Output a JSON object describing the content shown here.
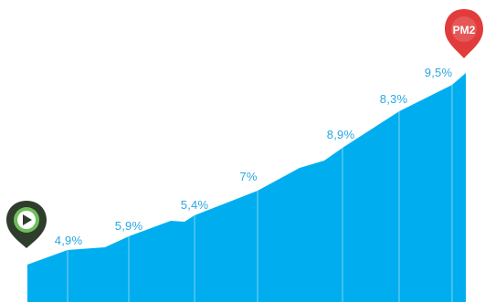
{
  "chart_data": {
    "type": "area",
    "segments": [
      {
        "label": "4,9%",
        "value": 4.9
      },
      {
        "label": "5,9%",
        "value": 5.9
      },
      {
        "label": "5,4%",
        "value": 5.4
      },
      {
        "label": "7%",
        "value": 7
      },
      {
        "label": "8,9%",
        "value": 8.9
      },
      {
        "label": "8,3%",
        "value": 8.3
      },
      {
        "label": "9,5%",
        "value": 9.5
      }
    ],
    "start_marker": {
      "icon": "play-icon"
    },
    "end_marker": {
      "label": "PM2"
    },
    "grid": false,
    "legend": false
  },
  "colors": {
    "fill": "#00AEEF",
    "labels": "#2AA8E0",
    "divider": "#7fd3f3",
    "start_marker_outer": "#2f3d2c",
    "start_marker_inner": "#6dbf5b",
    "end_marker": "#e23b3b"
  }
}
